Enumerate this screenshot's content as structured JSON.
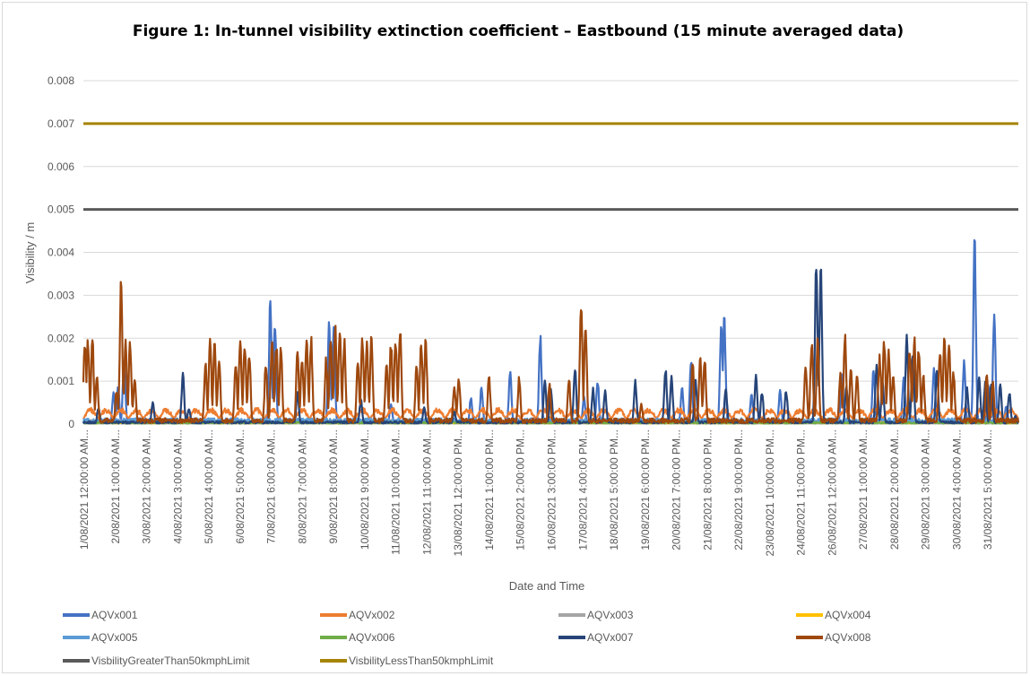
{
  "chart_data": {
    "type": "line",
    "title": "Figure 1: In-tunnel visibility extinction coefficient – Eastbound (15 minute averaged data)",
    "xlabel": "Date and Time",
    "ylabel": "Visibility / m",
    "ylim": [
      0,
      0.008
    ],
    "y_ticks": [
      "0",
      "0.001",
      "0.002",
      "0.003",
      "0.004",
      "0.005",
      "0.006",
      "0.007",
      "0.008"
    ],
    "x_ticks": [
      "1/08/2021 12:00:00 AM...",
      "2/08/2021 1:00:00 AM...",
      "3/08/2021 2:00:00 AM...",
      "4/08/2021 3:00:00 AM...",
      "5/08/2021 4:00:00 AM...",
      "6/08/2021 5:00:00 AM...",
      "7/08/2021 6:00:00 AM...",
      "8/08/2021 7:00:00 AM...",
      "9/08/2021 8:00:00 AM...",
      "10/08/2021 9:00:00 AM...",
      "11/08/2021 10:00:00 AM...",
      "12/08/2021 11:00:00 AM...",
      "13/08/2021 12:00:00 PM...",
      "14/08/2021 1:00:00 PM...",
      "15/08/2021 2:00:00 PM...",
      "16/08/2021 3:00:00 PM...",
      "17/08/2021 4:00:00 PM...",
      "18/08/2021 5:00:00 PM...",
      "19/08/2021 6:00:00 PM...",
      "20/08/2021 7:00:00 PM...",
      "21/08/2021 8:00:00 PM...",
      "22/08/2021 9:00:00 PM...",
      "23/08/2021 10:00:00 PM...",
      "24/08/2021 11:00:00 PM...",
      "26/08/2021 12:00:00 AM...",
      "27/08/2021 1:00:00 AM...",
      "28/08/2021 2:00:00 AM...",
      "29/08/2021 3:00:00 AM...",
      "30/08/2021 4:00:00 AM...",
      "31/08/2021 5:00:00 AM..."
    ],
    "x_range_days": [
      0,
      31
    ],
    "grid": "horizontal",
    "legend_position": "bottom",
    "series": [
      {
        "name": "AQVx001",
        "color": "#4472C4",
        "peaks": [
          [
            1.0,
            0.00075
          ],
          [
            1.15,
            0.00088
          ],
          [
            1.35,
            0.0016
          ],
          [
            6.2,
            0.00305
          ],
          [
            6.35,
            0.0024
          ],
          [
            8.15,
            0.0025
          ],
          [
            8.3,
            0.0024
          ],
          [
            10.2,
            0.0005
          ],
          [
            12.85,
            0.00065
          ],
          [
            13.2,
            0.0009
          ],
          [
            14.15,
            0.00135
          ],
          [
            15.15,
            0.00215
          ],
          [
            16.6,
            0.00065
          ],
          [
            17.05,
            0.0011
          ],
          [
            19.85,
            0.0009
          ],
          [
            20.15,
            0.00155
          ],
          [
            21.15,
            0.00255
          ],
          [
            21.25,
            0.00255
          ],
          [
            22.15,
            0.0007
          ],
          [
            23.1,
            0.00085
          ],
          [
            25.15,
            0.0012
          ],
          [
            26.2,
            0.0014
          ],
          [
            27.2,
            0.0012
          ],
          [
            28.2,
            0.0014
          ],
          [
            29.2,
            0.0016
          ],
          [
            29.55,
            0.00445
          ],
          [
            30.0,
            0.001
          ],
          [
            30.2,
            0.00275
          ],
          [
            30.6,
            0.00045
          ]
        ],
        "baseline": 5e-05
      },
      {
        "name": "AQVx002",
        "color": "#ED7D31",
        "peaks": [],
        "baseline": 0.00028
      },
      {
        "name": "AQVx003",
        "color": "#A5A5A5",
        "peaks": [],
        "baseline": 6e-05
      },
      {
        "name": "AQVx004",
        "color": "#FFC000",
        "peaks": [],
        "baseline": 4e-05
      },
      {
        "name": "AQVx005",
        "color": "#5B9BD5",
        "peaks": [],
        "baseline": 8e-05
      },
      {
        "name": "AQVx006",
        "color": "#70AD47",
        "peaks": [
          [
            18.9,
            0.0001
          ],
          [
            20.8,
            0.00012
          ],
          [
            25.9,
            0.0001
          ],
          [
            28.1,
            8e-05
          ]
        ],
        "baseline": 3e-05
      },
      {
        "name": "AQVx007",
        "color": "#264478",
        "peaks": [
          [
            0.5,
            0.0004
          ],
          [
            2.3,
            0.00055
          ],
          [
            3.3,
            0.00125
          ],
          [
            3.5,
            0.0004
          ],
          [
            7.1,
            0.00075
          ],
          [
            9.2,
            0.0006
          ],
          [
            11.3,
            0.0004
          ],
          [
            12.3,
            0.0003
          ],
          [
            15.3,
            0.0011
          ],
          [
            15.5,
            0.0009
          ],
          [
            16.3,
            0.00145
          ],
          [
            16.9,
            0.00085
          ],
          [
            17.3,
            0.0008
          ],
          [
            18.3,
            0.00105
          ],
          [
            19.3,
            0.0014
          ],
          [
            19.5,
            0.0012
          ],
          [
            20.3,
            0.00105
          ],
          [
            21.3,
            0.0009
          ],
          [
            22.3,
            0.00115
          ],
          [
            22.5,
            0.0008
          ],
          [
            23.3,
            0.00085
          ],
          [
            24.3,
            0.0042
          ],
          [
            24.45,
            0.0037
          ],
          [
            25.3,
            0.00095
          ],
          [
            26.3,
            0.0015
          ],
          [
            26.5,
            0.0011
          ],
          [
            27.3,
            0.0021
          ],
          [
            27.5,
            0.0018
          ],
          [
            28.3,
            0.00135
          ],
          [
            29.3,
            0.0009
          ],
          [
            29.7,
            0.00115
          ],
          [
            29.9,
            0.001
          ],
          [
            30.1,
            0.001
          ],
          [
            30.4,
            0.00095
          ],
          [
            30.7,
            0.0008
          ],
          [
            30.9,
            0.0002
          ]
        ],
        "baseline": 4e-05
      },
      {
        "name": "AQVx008",
        "color": "#9E480E",
        "peaks": [
          [
            0.05,
            0.00205
          ],
          [
            0.15,
            0.0021
          ],
          [
            0.3,
            0.00215
          ],
          [
            0.45,
            0.0012
          ],
          [
            1.1,
            0.0008
          ],
          [
            1.25,
            0.0035
          ],
          [
            1.4,
            0.0021
          ],
          [
            1.55,
            0.00205
          ],
          [
            1.7,
            0.0012
          ],
          [
            4.05,
            0.0015
          ],
          [
            4.2,
            0.0021
          ],
          [
            4.35,
            0.00195
          ],
          [
            4.5,
            0.0017
          ],
          [
            5.05,
            0.0015
          ],
          [
            5.2,
            0.0021
          ],
          [
            5.35,
            0.002
          ],
          [
            5.5,
            0.0018
          ],
          [
            6.05,
            0.0015
          ],
          [
            6.25,
            0.0021
          ],
          [
            6.4,
            0.002
          ],
          [
            6.55,
            0.00185
          ],
          [
            7.1,
            0.0018
          ],
          [
            7.25,
            0.0017
          ],
          [
            7.4,
            0.00215
          ],
          [
            7.55,
            0.0021
          ],
          [
            8.05,
            0.0016
          ],
          [
            8.2,
            0.0021
          ],
          [
            8.35,
            0.0024
          ],
          [
            8.5,
            0.0024
          ],
          [
            8.65,
            0.0021
          ],
          [
            9.1,
            0.0015
          ],
          [
            9.25,
            0.0021
          ],
          [
            9.4,
            0.00195
          ],
          [
            9.55,
            0.0021
          ],
          [
            10.05,
            0.0015
          ],
          [
            10.2,
            0.002
          ],
          [
            10.35,
            0.0021
          ],
          [
            10.5,
            0.0024
          ],
          [
            11.05,
            0.0015
          ],
          [
            11.2,
            0.0021
          ],
          [
            11.35,
            0.0021
          ],
          [
            12.3,
            0.0009
          ],
          [
            12.45,
            0.00115
          ],
          [
            13.45,
            0.0012
          ],
          [
            14.45,
            0.00115
          ],
          [
            15.45,
            0.001
          ],
          [
            16.1,
            0.0011
          ],
          [
            16.5,
            0.00305
          ],
          [
            16.65,
            0.0025
          ],
          [
            18.5,
            0.0005
          ],
          [
            20.2,
            0.0015
          ],
          [
            20.45,
            0.00165
          ],
          [
            20.6,
            0.00165
          ],
          [
            23.95,
            0.0015
          ],
          [
            24.15,
            0.0021
          ],
          [
            24.35,
            0.0021
          ],
          [
            25.1,
            0.0012
          ],
          [
            25.25,
            0.0022
          ],
          [
            25.45,
            0.0014
          ],
          [
            25.65,
            0.00125
          ],
          [
            26.4,
            0.0017
          ],
          [
            26.55,
            0.0021
          ],
          [
            26.7,
            0.0019
          ],
          [
            26.85,
            0.0013
          ],
          [
            27.4,
            0.0019
          ],
          [
            27.55,
            0.0021
          ],
          [
            27.7,
            0.0019
          ],
          [
            27.85,
            0.0012
          ],
          [
            28.4,
            0.0018
          ],
          [
            28.55,
            0.0021
          ],
          [
            28.7,
            0.0021
          ],
          [
            28.85,
            0.0013
          ],
          [
            29.95,
            0.0012
          ],
          [
            30.15,
            0.0011
          ]
        ],
        "baseline": 8e-05
      },
      {
        "name": "VisbilityGreaterThan50kmphLimit",
        "color": "#595959",
        "constant": 0.005
      },
      {
        "name": "VisbilityLessThan50kmphLimit",
        "color": "#A68405",
        "constant": 0.007
      }
    ]
  }
}
